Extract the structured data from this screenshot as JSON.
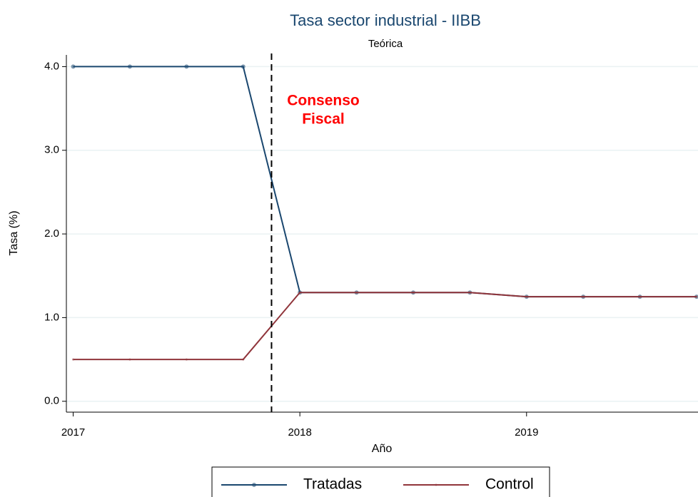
{
  "chart_data": {
    "type": "line",
    "title": "Tasa sector industrial - IIBB",
    "subtitle": "Teórica",
    "xlabel": "Año",
    "ylabel": "Tasa (%)",
    "x": [
      2017,
      2017.25,
      2017.5,
      2017.75,
      2018,
      2018.25,
      2018.5,
      2018.75,
      2019,
      2019.25,
      2019.5,
      2019.75
    ],
    "series": [
      {
        "name": "Tratadas",
        "color": "#1a476f",
        "values": [
          4,
          4,
          4,
          4,
          1.3,
          1.3,
          1.3,
          1.3,
          1.25,
          1.25,
          1.25,
          1.25
        ]
      },
      {
        "name": "Control",
        "color": "#90353b",
        "values": [
          0.5,
          0.5,
          0.5,
          0.5,
          1.3,
          1.3,
          1.3,
          1.3,
          1.25,
          1.25,
          1.25,
          1.25
        ]
      }
    ],
    "xlim": [
      2016.97,
      2019.75
    ],
    "xticks": [
      2017,
      2018,
      2019
    ],
    "ylim": [
      -0.13,
      4.14
    ],
    "yticks": [
      {
        "value": 0,
        "label": "0.0"
      },
      {
        "value": 1,
        "label": "1.0"
      },
      {
        "value": 2,
        "label": "2.0"
      },
      {
        "value": 3,
        "label": "3.0"
      },
      {
        "value": 4,
        "label": "4.0"
      }
    ],
    "grid": true,
    "legend": "bottom",
    "vline": 2017.875,
    "annotation": {
      "lines": [
        "Consenso",
        "Fiscal"
      ],
      "color": "#ff0000"
    }
  }
}
